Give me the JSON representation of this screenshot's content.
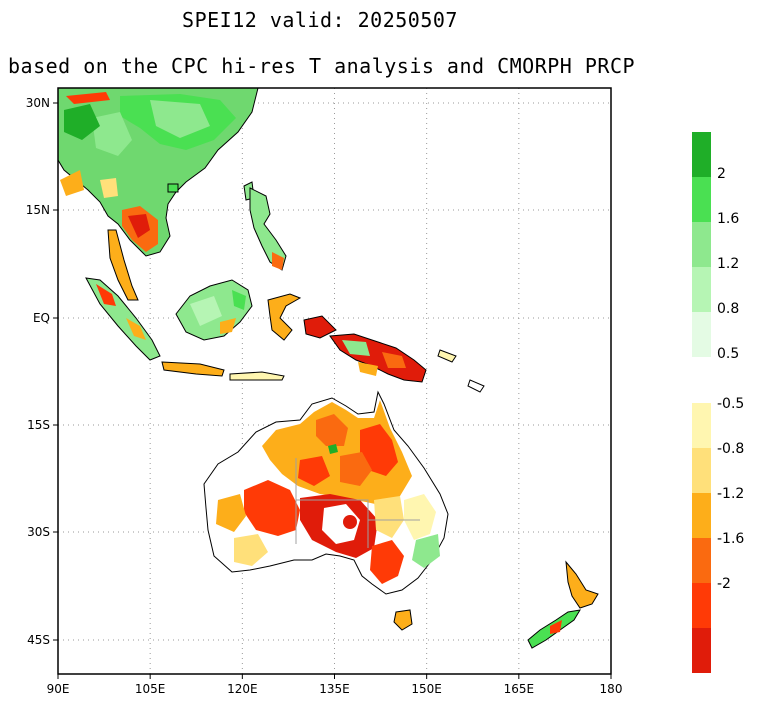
{
  "title": {
    "main": "SPEI12  valid: 20250507",
    "subtitle": "based on the CPC hi-res T analysis and CMORPH PRCP"
  },
  "map": {
    "lon_range": [
      90,
      180
    ],
    "lat_range": [
      -50,
      33
    ],
    "x_ticks": [
      "90E",
      "105E",
      "120E",
      "135E",
      "150E",
      "165E",
      "180"
    ],
    "y_ticks": [
      "30N",
      "15N",
      "EQ",
      "15S",
      "30S",
      "45S"
    ],
    "grid": "dotted"
  },
  "colorbar": {
    "wet": {
      "labels": [
        "2",
        "1.6",
        "1.2",
        "0.8",
        "0.5"
      ],
      "colors": [
        "#1fae28",
        "#4ae052",
        "#8ee88e",
        "#b6f5b4",
        "#e4fbe4"
      ]
    },
    "dry": {
      "labels": [
        "-0.5",
        "-0.8",
        "-1.2",
        "-1.6",
        "-2"
      ],
      "colors": [
        "#fff6b0",
        "#ffe07a",
        "#fdae1a",
        "#fa6a10",
        "#ff3a06",
        "#e01c0a"
      ]
    }
  },
  "legend_colors": {
    "land_near_normal": "#ffffff",
    "coast": "#000000",
    "border": "#a0a0a0"
  }
}
